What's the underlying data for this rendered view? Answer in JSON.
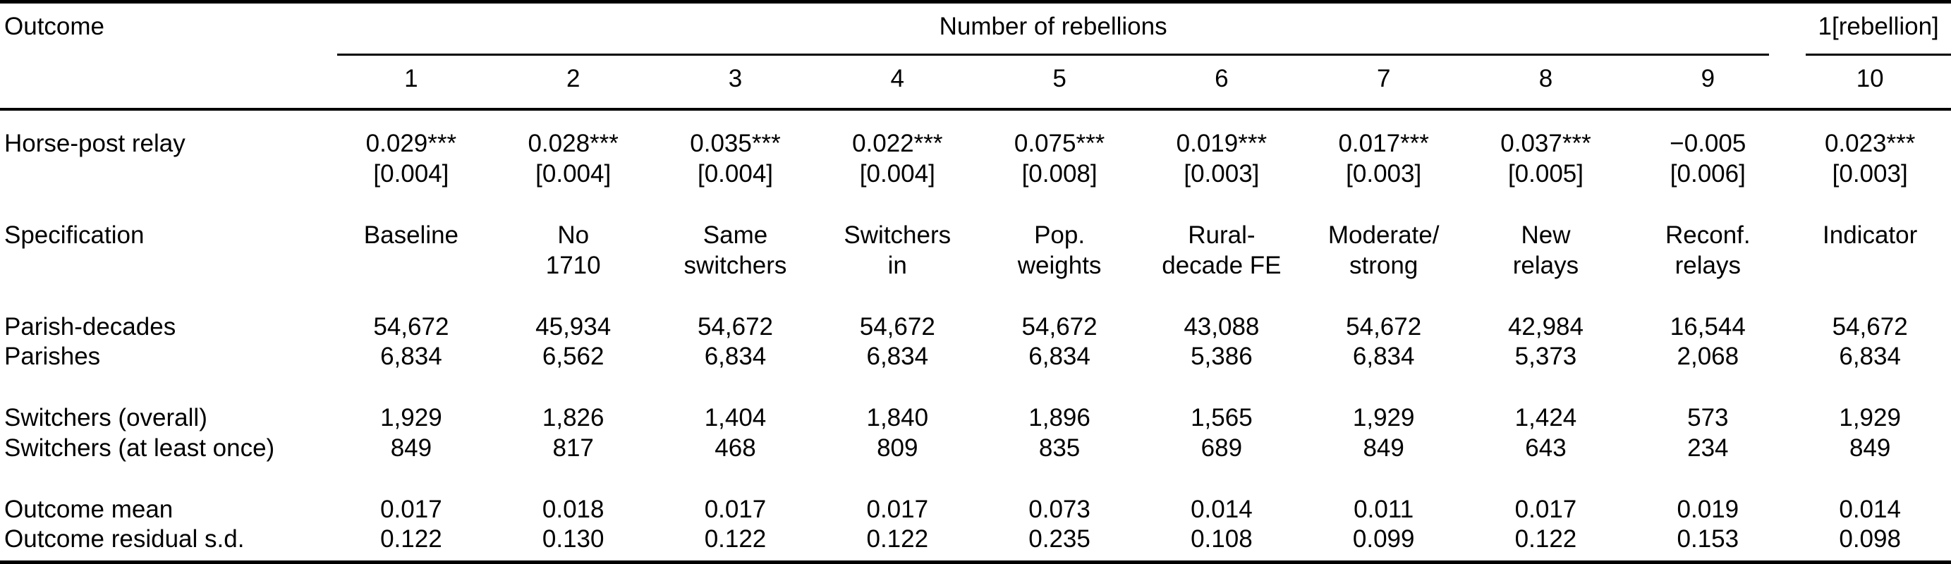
{
  "table": {
    "outcome_header": "Outcome",
    "spanner_main": "Number of rebellions",
    "spanner_last": "1[rebellion]",
    "columns": [
      "1",
      "2",
      "3",
      "4",
      "5",
      "6",
      "7",
      "8",
      "9",
      "10"
    ],
    "horse_post_relay": {
      "label": "Horse-post relay",
      "estimates": [
        "0.029***",
        "0.028***",
        "0.035***",
        "0.022***",
        "0.075***",
        "0.019***",
        "0.017***",
        "0.037***",
        "−0.005",
        "0.023***"
      ],
      "std_errors": [
        "[0.004]",
        "[0.004]",
        "[0.004]",
        "[0.004]",
        "[0.008]",
        "[0.003]",
        "[0.003]",
        "[0.005]",
        "[0.006]",
        "[0.003]"
      ]
    },
    "specification": {
      "label": "Specification",
      "line1": [
        "Baseline",
        "No",
        "Same",
        "Switchers",
        "Pop.",
        "Rural-",
        "Moderate/",
        "New",
        "Reconf.",
        "Indicator"
      ],
      "line2": [
        "",
        "1710",
        "switchers",
        "in",
        "weights",
        "decade FE",
        "strong",
        "relays",
        "relays",
        ""
      ]
    },
    "parish_decades": {
      "label": "Parish-decades",
      "values": [
        "54,672",
        "45,934",
        "54,672",
        "54,672",
        "54,672",
        "43,088",
        "54,672",
        "42,984",
        "16,544",
        "54,672"
      ]
    },
    "parishes": {
      "label": "Parishes",
      "values": [
        "6,834",
        "6,562",
        "6,834",
        "6,834",
        "6,834",
        "5,386",
        "6,834",
        "5,373",
        "2,068",
        "6,834"
      ]
    },
    "switchers_overall": {
      "label": "Switchers (overall)",
      "values": [
        "1,929",
        "1,826",
        "1,404",
        "1,840",
        "1,896",
        "1,565",
        "1,929",
        "1,424",
        "573",
        "1,929"
      ]
    },
    "switchers_once": {
      "label": "Switchers (at least once)",
      "values": [
        "849",
        "817",
        "468",
        "809",
        "835",
        "689",
        "849",
        "643",
        "234",
        "849"
      ]
    },
    "outcome_mean": {
      "label": "Outcome mean",
      "values": [
        "0.017",
        "0.018",
        "0.017",
        "0.017",
        "0.073",
        "0.014",
        "0.011",
        "0.017",
        "0.019",
        "0.014"
      ]
    },
    "outcome_resid_sd": {
      "label": "Outcome residual s.d.",
      "values": [
        "0.122",
        "0.130",
        "0.122",
        "0.122",
        "0.235",
        "0.108",
        "0.099",
        "0.122",
        "0.153",
        "0.098"
      ]
    }
  }
}
